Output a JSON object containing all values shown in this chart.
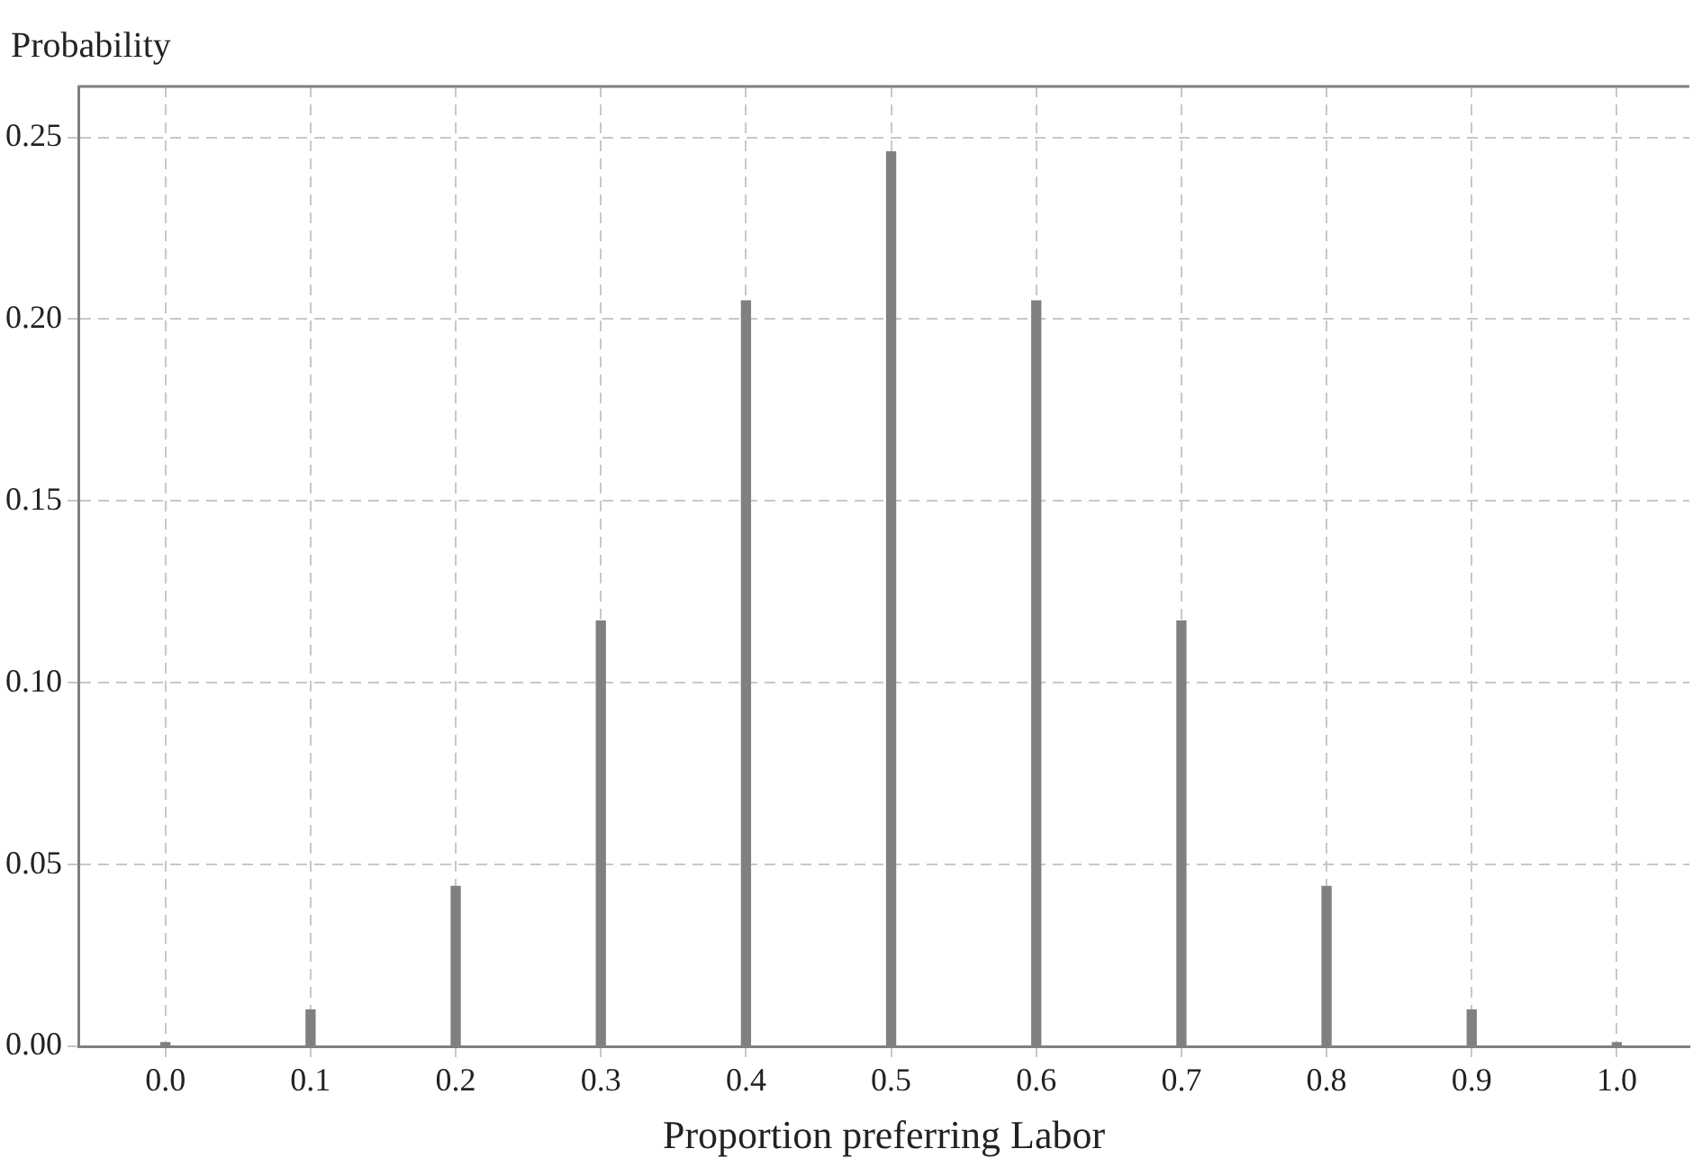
{
  "chart_data": {
    "type": "bar",
    "xlabel": "Proportion preferring Labor",
    "ylabel": "Probability",
    "x": [
      0.0,
      0.1,
      0.2,
      0.3,
      0.4,
      0.5,
      0.6,
      0.7,
      0.8,
      0.9,
      1.0
    ],
    "values": [
      0.001,
      0.01,
      0.044,
      0.117,
      0.205,
      0.246,
      0.205,
      0.117,
      0.044,
      0.01,
      0.001
    ],
    "color": "#808080",
    "xlim": [
      -0.06,
      1.05
    ],
    "xticks": [
      {
        "value": 0,
        "label": "0.0"
      },
      0.1,
      0.2,
      0.3,
      0.4,
      0.5,
      0.6,
      0.7,
      0.8,
      0.9,
      {
        "value": 1,
        "label": "1.0"
      }
    ],
    "ylim": [
      0,
      0.264
    ],
    "yticks": [
      {
        "value": 0,
        "label": "0.00"
      },
      0.05,
      {
        "value": 0.1,
        "label": "0.10"
      },
      0.15,
      {
        "value": 0.2,
        "label": "0.20"
      },
      0.25
    ],
    "grid": true,
    "legend": false
  }
}
